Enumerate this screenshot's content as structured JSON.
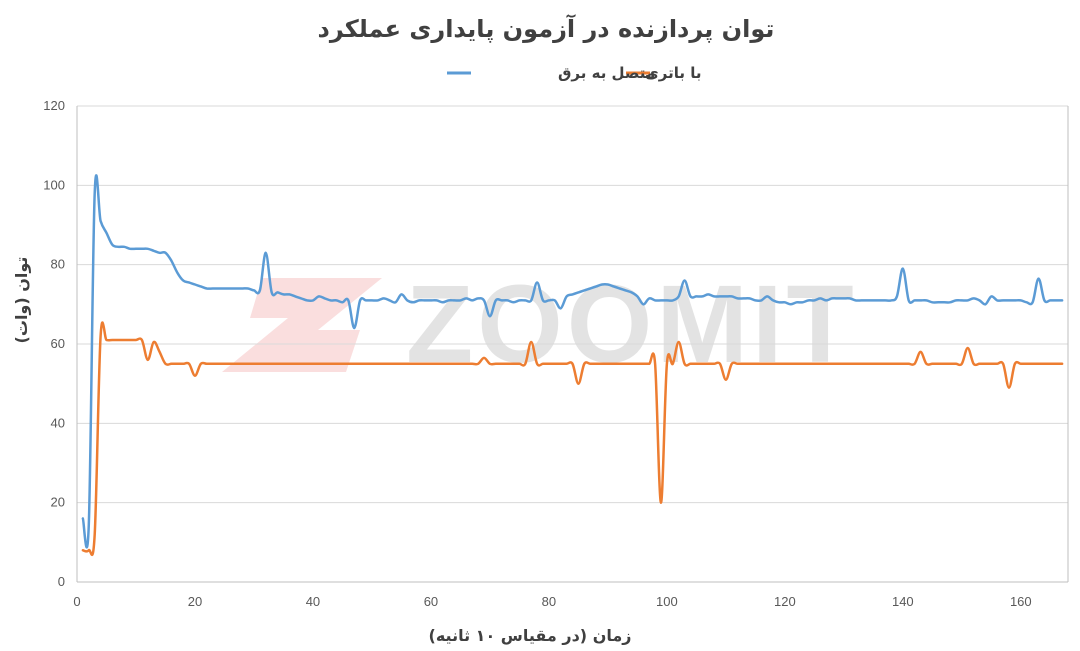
{
  "colors": {
    "series_blue": "#5b9bd5",
    "series_orange": "#ed7d31",
    "watermark_mark": "#f4b6b6",
    "watermark_text": "#a6a6a6"
  },
  "watermark": {
    "text": "ZOOMIT"
  },
  "chart_data": {
    "type": "line",
    "title": "توان پردازنده در آزمون پایداری عملکرد",
    "xlabel": "زمان (در مقیاس ۱۰ ثانیه)",
    "ylabel": "توان (وات)",
    "xlim": [
      0,
      168
    ],
    "ylim": [
      0,
      120
    ],
    "x_ticks": [
      0,
      20,
      40,
      60,
      80,
      100,
      120,
      140,
      160
    ],
    "y_ticks": [
      0,
      20,
      40,
      60,
      80,
      100,
      120
    ],
    "grid": true,
    "legend_position": "top",
    "series": [
      {
        "name": "متصل به برق",
        "color": "#5b9bd5",
        "points": [
          [
            1,
            16
          ],
          [
            2,
            14.5
          ],
          [
            3,
            98
          ],
          [
            4,
            91
          ],
          [
            5,
            88
          ],
          [
            6,
            85
          ],
          [
            7,
            84.5
          ],
          [
            8,
            84.5
          ],
          [
            9,
            84
          ],
          [
            10,
            84
          ],
          [
            11,
            84
          ],
          [
            12,
            84
          ],
          [
            13,
            83.5
          ],
          [
            14,
            83
          ],
          [
            15,
            83
          ],
          [
            16,
            81
          ],
          [
            17,
            78
          ],
          [
            18,
            76
          ],
          [
            19,
            75.5
          ],
          [
            20,
            75
          ],
          [
            21,
            74.5
          ],
          [
            22,
            74
          ],
          [
            23,
            74
          ],
          [
            24,
            74
          ],
          [
            25,
            74
          ],
          [
            26,
            74
          ],
          [
            27,
            74
          ],
          [
            28,
            74
          ],
          [
            29,
            74
          ],
          [
            30,
            73.5
          ],
          [
            31,
            73.5
          ],
          [
            32,
            83
          ],
          [
            33,
            73
          ],
          [
            34,
            73
          ],
          [
            35,
            72.5
          ],
          [
            36,
            72.5
          ],
          [
            37,
            72
          ],
          [
            38,
            71.5
          ],
          [
            39,
            71
          ],
          [
            40,
            71
          ],
          [
            41,
            72
          ],
          [
            42,
            71.5
          ],
          [
            43,
            71
          ],
          [
            44,
            71
          ],
          [
            45,
            70.5
          ],
          [
            46,
            71
          ],
          [
            47,
            64
          ],
          [
            48,
            71
          ],
          [
            49,
            71
          ],
          [
            50,
            71
          ],
          [
            51,
            71
          ],
          [
            52,
            71.5
          ],
          [
            53,
            71
          ],
          [
            54,
            70.5
          ],
          [
            55,
            72.5
          ],
          [
            56,
            71
          ],
          [
            57,
            70.5
          ],
          [
            58,
            71
          ],
          [
            59,
            71
          ],
          [
            60,
            71
          ],
          [
            61,
            71
          ],
          [
            62,
            70.5
          ],
          [
            63,
            71
          ],
          [
            64,
            71
          ],
          [
            65,
            71
          ],
          [
            66,
            71.5
          ],
          [
            67,
            71
          ],
          [
            68,
            71.5
          ],
          [
            69,
            71
          ],
          [
            70,
            67
          ],
          [
            71,
            71
          ],
          [
            72,
            71
          ],
          [
            73,
            71
          ],
          [
            74,
            70.5
          ],
          [
            75,
            71
          ],
          [
            76,
            71
          ],
          [
            77,
            71
          ],
          [
            78,
            75.5
          ],
          [
            79,
            71
          ],
          [
            80,
            71
          ],
          [
            81,
            71
          ],
          [
            82,
            69
          ],
          [
            83,
            72
          ],
          [
            84,
            72.5
          ],
          [
            85,
            73
          ],
          [
            86,
            73.5
          ],
          [
            87,
            74
          ],
          [
            88,
            74.5
          ],
          [
            89,
            75
          ],
          [
            90,
            75
          ],
          [
            91,
            74.5
          ],
          [
            92,
            74
          ],
          [
            93,
            73.5
          ],
          [
            94,
            73
          ],
          [
            95,
            72
          ],
          [
            96,
            70
          ],
          [
            97,
            71.5
          ],
          [
            98,
            71
          ],
          [
            99,
            71
          ],
          [
            100,
            71
          ],
          [
            101,
            71
          ],
          [
            102,
            72
          ],
          [
            103,
            76
          ],
          [
            104,
            72
          ],
          [
            105,
            72
          ],
          [
            106,
            72
          ],
          [
            107,
            72.5
          ],
          [
            108,
            72
          ],
          [
            109,
            72
          ],
          [
            110,
            72
          ],
          [
            111,
            72
          ],
          [
            112,
            71.5
          ],
          [
            113,
            71.5
          ],
          [
            114,
            71.5
          ],
          [
            115,
            71
          ],
          [
            116,
            71
          ],
          [
            117,
            72
          ],
          [
            118,
            71
          ],
          [
            119,
            70.5
          ],
          [
            120,
            70.5
          ],
          [
            121,
            70
          ],
          [
            122,
            70.5
          ],
          [
            123,
            70.5
          ],
          [
            124,
            71
          ],
          [
            125,
            71
          ],
          [
            126,
            71.5
          ],
          [
            127,
            71
          ],
          [
            128,
            71.5
          ],
          [
            129,
            71.5
          ],
          [
            130,
            71.5
          ],
          [
            131,
            71.5
          ],
          [
            132,
            71
          ],
          [
            133,
            71
          ],
          [
            134,
            71
          ],
          [
            135,
            71
          ],
          [
            136,
            71
          ],
          [
            137,
            71
          ],
          [
            138,
            71
          ],
          [
            139,
            72
          ],
          [
            140,
            79
          ],
          [
            141,
            71
          ],
          [
            142,
            71
          ],
          [
            143,
            71
          ],
          [
            144,
            71
          ],
          [
            145,
            70.5
          ],
          [
            146,
            70.5
          ],
          [
            147,
            70.5
          ],
          [
            148,
            70.5
          ],
          [
            149,
            71
          ],
          [
            150,
            71
          ],
          [
            151,
            71
          ],
          [
            152,
            71.5
          ],
          [
            153,
            71
          ],
          [
            154,
            70
          ],
          [
            155,
            72
          ],
          [
            156,
            71
          ],
          [
            157,
            71
          ],
          [
            158,
            71
          ],
          [
            159,
            71
          ],
          [
            160,
            71
          ],
          [
            161,
            70.5
          ],
          [
            162,
            70.5
          ],
          [
            163,
            76.5
          ],
          [
            164,
            71
          ],
          [
            165,
            71
          ],
          [
            166,
            71
          ],
          [
            167,
            71
          ]
        ]
      },
      {
        "name": "با باتری",
        "color": "#ed7d31",
        "points": [
          [
            1,
            8
          ],
          [
            2,
            8
          ],
          [
            3,
            12
          ],
          [
            4,
            62
          ],
          [
            5,
            61
          ],
          [
            6,
            61
          ],
          [
            7,
            61
          ],
          [
            8,
            61
          ],
          [
            9,
            61
          ],
          [
            10,
            61
          ],
          [
            11,
            61
          ],
          [
            12,
            56
          ],
          [
            13,
            60.5
          ],
          [
            14,
            58
          ],
          [
            15,
            55
          ],
          [
            16,
            55
          ],
          [
            17,
            55
          ],
          [
            18,
            55
          ],
          [
            19,
            55
          ],
          [
            20,
            52
          ],
          [
            21,
            55
          ],
          [
            22,
            55
          ],
          [
            23,
            55
          ],
          [
            24,
            55
          ],
          [
            25,
            55
          ],
          [
            26,
            55
          ],
          [
            27,
            55
          ],
          [
            28,
            55
          ],
          [
            29,
            55
          ],
          [
            30,
            55
          ],
          [
            31,
            55
          ],
          [
            32,
            55
          ],
          [
            33,
            55
          ],
          [
            34,
            55
          ],
          [
            35,
            55
          ],
          [
            36,
            55
          ],
          [
            37,
            55
          ],
          [
            38,
            55
          ],
          [
            39,
            55
          ],
          [
            40,
            55
          ],
          [
            41,
            55
          ],
          [
            42,
            55
          ],
          [
            43,
            55
          ],
          [
            44,
            55
          ],
          [
            45,
            55
          ],
          [
            46,
            55
          ],
          [
            47,
            55
          ],
          [
            48,
            55
          ],
          [
            49,
            55
          ],
          [
            50,
            55
          ],
          [
            51,
            55
          ],
          [
            52,
            55
          ],
          [
            53,
            55
          ],
          [
            54,
            55
          ],
          [
            55,
            55
          ],
          [
            56,
            55
          ],
          [
            57,
            55
          ],
          [
            58,
            55
          ],
          [
            59,
            55
          ],
          [
            60,
            55
          ],
          [
            61,
            55
          ],
          [
            62,
            55
          ],
          [
            63,
            55
          ],
          [
            64,
            55
          ],
          [
            65,
            55
          ],
          [
            66,
            55
          ],
          [
            67,
            55
          ],
          [
            68,
            55
          ],
          [
            69,
            56.5
          ],
          [
            70,
            55
          ],
          [
            71,
            55
          ],
          [
            72,
            55
          ],
          [
            73,
            55
          ],
          [
            74,
            55
          ],
          [
            75,
            55
          ],
          [
            76,
            55
          ],
          [
            77,
            60.5
          ],
          [
            78,
            55
          ],
          [
            79,
            55
          ],
          [
            80,
            55
          ],
          [
            81,
            55
          ],
          [
            82,
            55
          ],
          [
            83,
            55
          ],
          [
            84,
            55
          ],
          [
            85,
            50
          ],
          [
            86,
            55
          ],
          [
            87,
            55
          ],
          [
            88,
            55
          ],
          [
            89,
            55
          ],
          [
            90,
            55
          ],
          [
            91,
            55
          ],
          [
            92,
            55
          ],
          [
            93,
            55
          ],
          [
            94,
            55
          ],
          [
            95,
            55
          ],
          [
            96,
            55
          ],
          [
            97,
            55
          ],
          [
            98,
            55
          ],
          [
            99,
            20
          ],
          [
            100,
            55
          ],
          [
            101,
            55
          ],
          [
            102,
            60.5
          ],
          [
            103,
            55
          ],
          [
            104,
            55
          ],
          [
            105,
            55
          ],
          [
            106,
            55
          ],
          [
            107,
            55
          ],
          [
            108,
            55
          ],
          [
            109,
            55
          ],
          [
            110,
            51
          ],
          [
            111,
            55
          ],
          [
            112,
            55
          ],
          [
            113,
            55
          ],
          [
            114,
            55
          ],
          [
            115,
            55
          ],
          [
            116,
            55
          ],
          [
            117,
            55
          ],
          [
            118,
            55
          ],
          [
            119,
            55
          ],
          [
            120,
            55
          ],
          [
            121,
            55
          ],
          [
            122,
            55
          ],
          [
            123,
            55
          ],
          [
            124,
            55
          ],
          [
            125,
            55
          ],
          [
            126,
            55
          ],
          [
            127,
            55
          ],
          [
            128,
            55
          ],
          [
            129,
            55
          ],
          [
            130,
            55
          ],
          [
            131,
            55
          ],
          [
            132,
            55
          ],
          [
            133,
            55
          ],
          [
            134,
            55
          ],
          [
            135,
            55
          ],
          [
            136,
            55
          ],
          [
            137,
            55
          ],
          [
            138,
            55
          ],
          [
            139,
            55
          ],
          [
            140,
            55
          ],
          [
            141,
            55
          ],
          [
            142,
            55
          ],
          [
            143,
            58
          ],
          [
            144,
            55
          ],
          [
            145,
            55
          ],
          [
            146,
            55
          ],
          [
            147,
            55
          ],
          [
            148,
            55
          ],
          [
            149,
            55
          ],
          [
            150,
            55
          ],
          [
            151,
            59
          ],
          [
            152,
            55
          ],
          [
            153,
            55
          ],
          [
            154,
            55
          ],
          [
            155,
            55
          ],
          [
            156,
            55
          ],
          [
            157,
            55
          ],
          [
            158,
            49
          ],
          [
            159,
            55
          ],
          [
            160,
            55
          ],
          [
            161,
            55
          ],
          [
            162,
            55
          ],
          [
            163,
            55
          ],
          [
            164,
            55
          ],
          [
            165,
            55
          ],
          [
            166,
            55
          ],
          [
            167,
            55
          ]
        ]
      }
    ]
  }
}
